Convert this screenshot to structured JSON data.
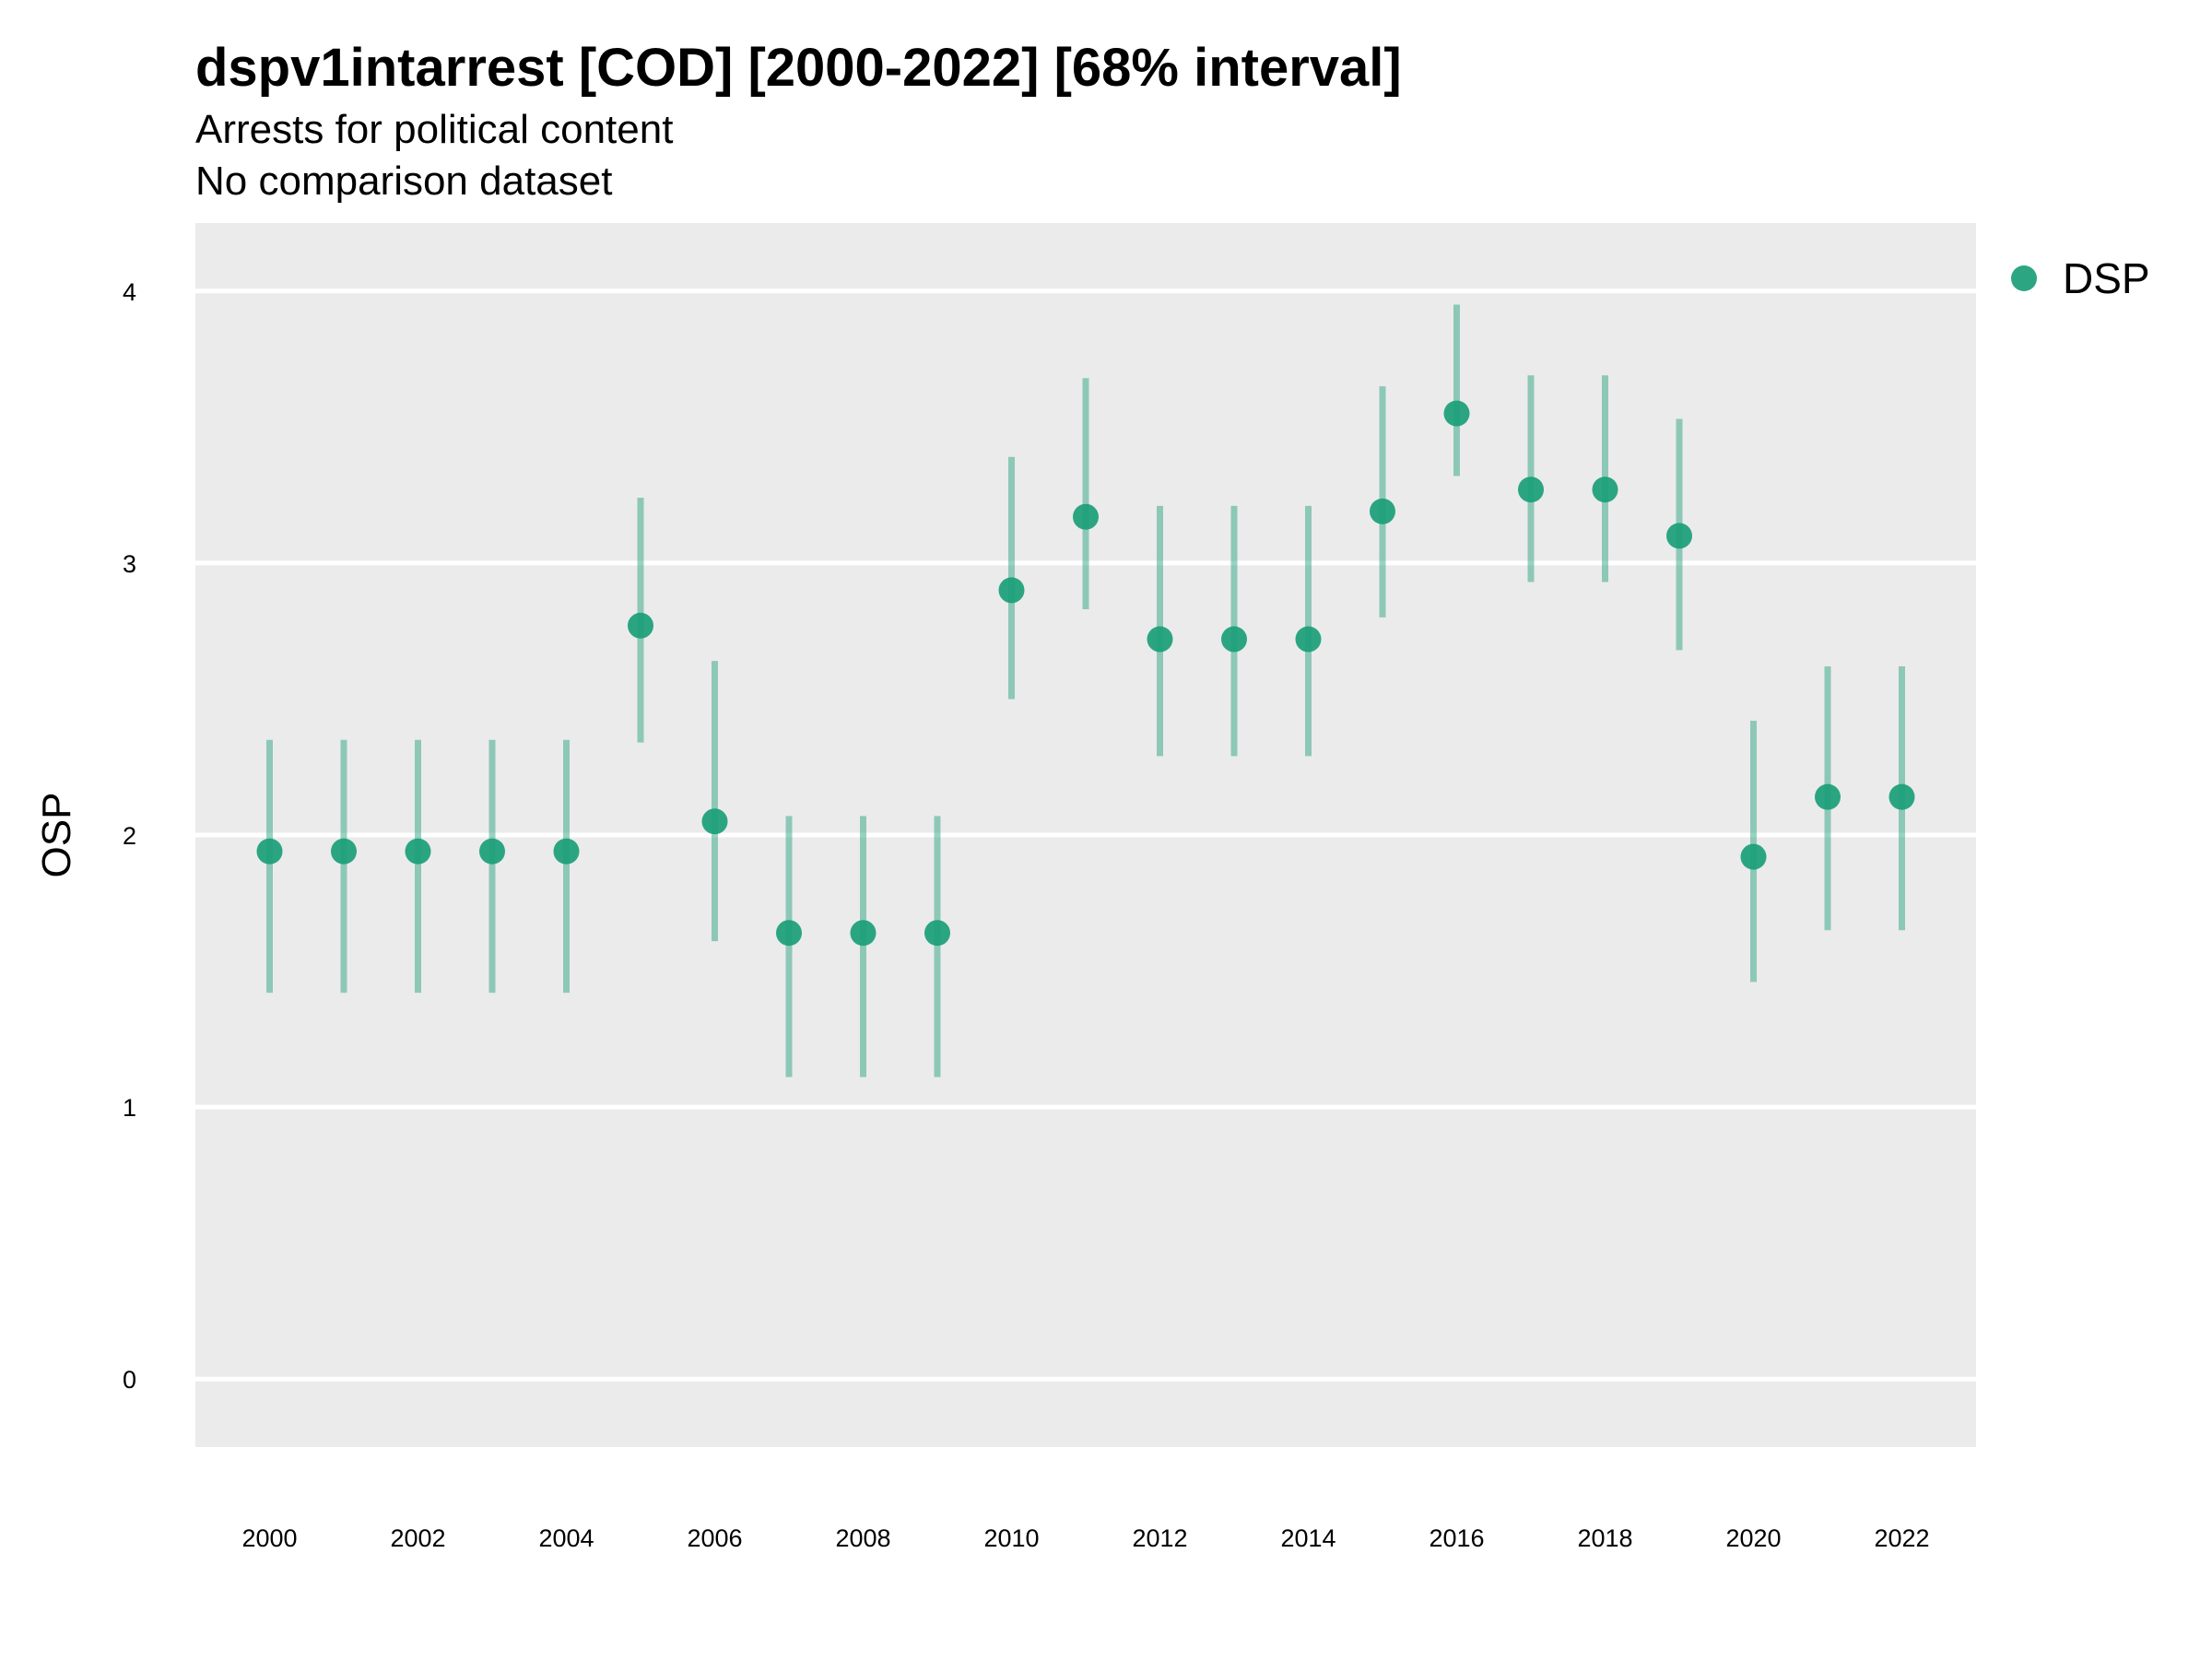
{
  "chart_data": {
    "type": "scatter",
    "title": "dspv1intarrest [COD] [2000-2022] [68% interval]",
    "subtitle": "Arrests for political content",
    "subtitle2": "No comparison dataset",
    "xlabel": "",
    "ylabel": "OSP",
    "xlim": [
      1999,
      2023
    ],
    "ylim": [
      -0.25,
      4.25
    ],
    "x_ticks": [
      2000,
      2002,
      2004,
      2006,
      2008,
      2010,
      2012,
      2014,
      2016,
      2018,
      2020,
      2022
    ],
    "y_ticks": [
      0,
      1,
      2,
      3,
      4
    ],
    "grid": true,
    "legend_position": "right",
    "series": [
      {
        "name": "DSP",
        "color": "#1a9e77",
        "x": [
          2000,
          2001,
          2002,
          2003,
          2004,
          2005,
          2006,
          2007,
          2008,
          2009,
          2010,
          2011,
          2012,
          2013,
          2014,
          2015,
          2016,
          2017,
          2018,
          2019,
          2020,
          2021,
          2022
        ],
        "y": [
          1.94,
          1.94,
          1.94,
          1.94,
          1.94,
          2.77,
          2.05,
          1.64,
          1.64,
          1.64,
          2.9,
          3.17,
          2.72,
          2.72,
          2.72,
          3.19,
          3.55,
          3.27,
          3.27,
          3.1,
          1.92,
          2.14,
          2.14
        ],
        "low": [
          1.42,
          1.42,
          1.42,
          1.42,
          1.42,
          2.34,
          1.61,
          1.11,
          1.11,
          1.11,
          2.5,
          2.83,
          2.29,
          2.29,
          2.29,
          2.8,
          3.32,
          2.93,
          2.93,
          2.68,
          1.46,
          1.65,
          1.65
        ],
        "high": [
          2.35,
          2.35,
          2.35,
          2.35,
          2.35,
          3.24,
          2.64,
          2.07,
          2.07,
          2.07,
          3.39,
          3.68,
          3.21,
          3.21,
          3.21,
          3.65,
          3.95,
          3.69,
          3.69,
          3.53,
          2.42,
          2.62,
          2.62
        ]
      }
    ]
  }
}
